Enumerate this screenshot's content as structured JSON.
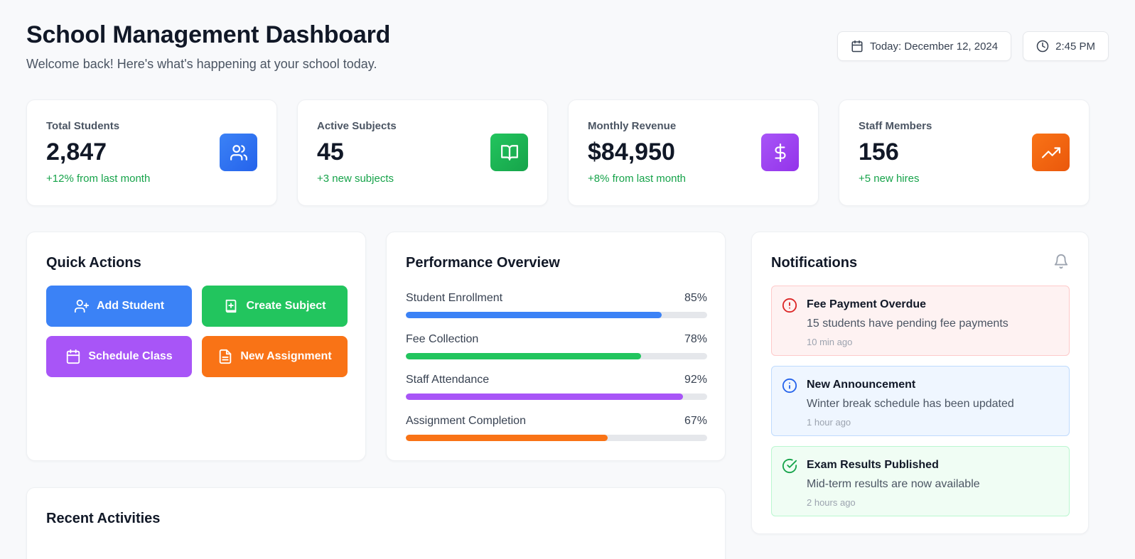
{
  "header": {
    "title": "School Management Dashboard",
    "subtitle": "Welcome back! Here's what's happening at your school today.",
    "date_label": "Today: December 12, 2024",
    "time_label": "2:45 PM"
  },
  "stats": [
    {
      "label": "Total Students",
      "value": "2,847",
      "delta": "+12% from last month",
      "icon": "users-icon",
      "color": "#3b82f6"
    },
    {
      "label": "Active Subjects",
      "value": "45",
      "delta": "+3 new subjects",
      "icon": "book-open-icon",
      "color": "#22c55e"
    },
    {
      "label": "Monthly Revenue",
      "value": "$84,950",
      "delta": "+8% from last month",
      "icon": "dollar-icon",
      "color": "#a855f7"
    },
    {
      "label": "Staff Members",
      "value": "156",
      "delta": "+5 new hires",
      "icon": "trending-up-icon",
      "color": "#f97316"
    }
  ],
  "quick_actions": {
    "title": "Quick Actions",
    "buttons": [
      {
        "label": "Add Student",
        "icon": "user-plus-icon",
        "color": "#3b82f6"
      },
      {
        "label": "Create Subject",
        "icon": "book-plus-icon",
        "color": "#22c55e"
      },
      {
        "label": "Schedule Class",
        "icon": "calendar-icon",
        "color": "#a855f7"
      },
      {
        "label": "New Assignment",
        "icon": "file-text-icon",
        "color": "#f97316"
      }
    ]
  },
  "performance": {
    "title": "Performance Overview",
    "items": [
      {
        "label": "Student Enrollment",
        "pct_label": "85%",
        "value": 85,
        "color": "#3b82f6"
      },
      {
        "label": "Fee Collection",
        "pct_label": "78%",
        "value": 78,
        "color": "#22c55e"
      },
      {
        "label": "Staff Attendance",
        "pct_label": "92%",
        "value": 92,
        "color": "#a855f7"
      },
      {
        "label": "Assignment Completion",
        "pct_label": "67%",
        "value": 67,
        "color": "#f97316"
      }
    ]
  },
  "notifications": {
    "title": "Notifications",
    "items": [
      {
        "title": "Fee Payment Overdue",
        "body": "15 students have pending fee payments",
        "time": "10 min ago",
        "icon": "alert-circle-icon"
      },
      {
        "title": "New Announcement",
        "body": "Winter break schedule has been updated",
        "time": "1 hour ago",
        "icon": "info-icon"
      },
      {
        "title": "Exam Results Published",
        "body": "Mid-term results are now available",
        "time": "2 hours ago",
        "icon": "check-circle-icon"
      }
    ]
  },
  "recent": {
    "title": "Recent Activities"
  }
}
